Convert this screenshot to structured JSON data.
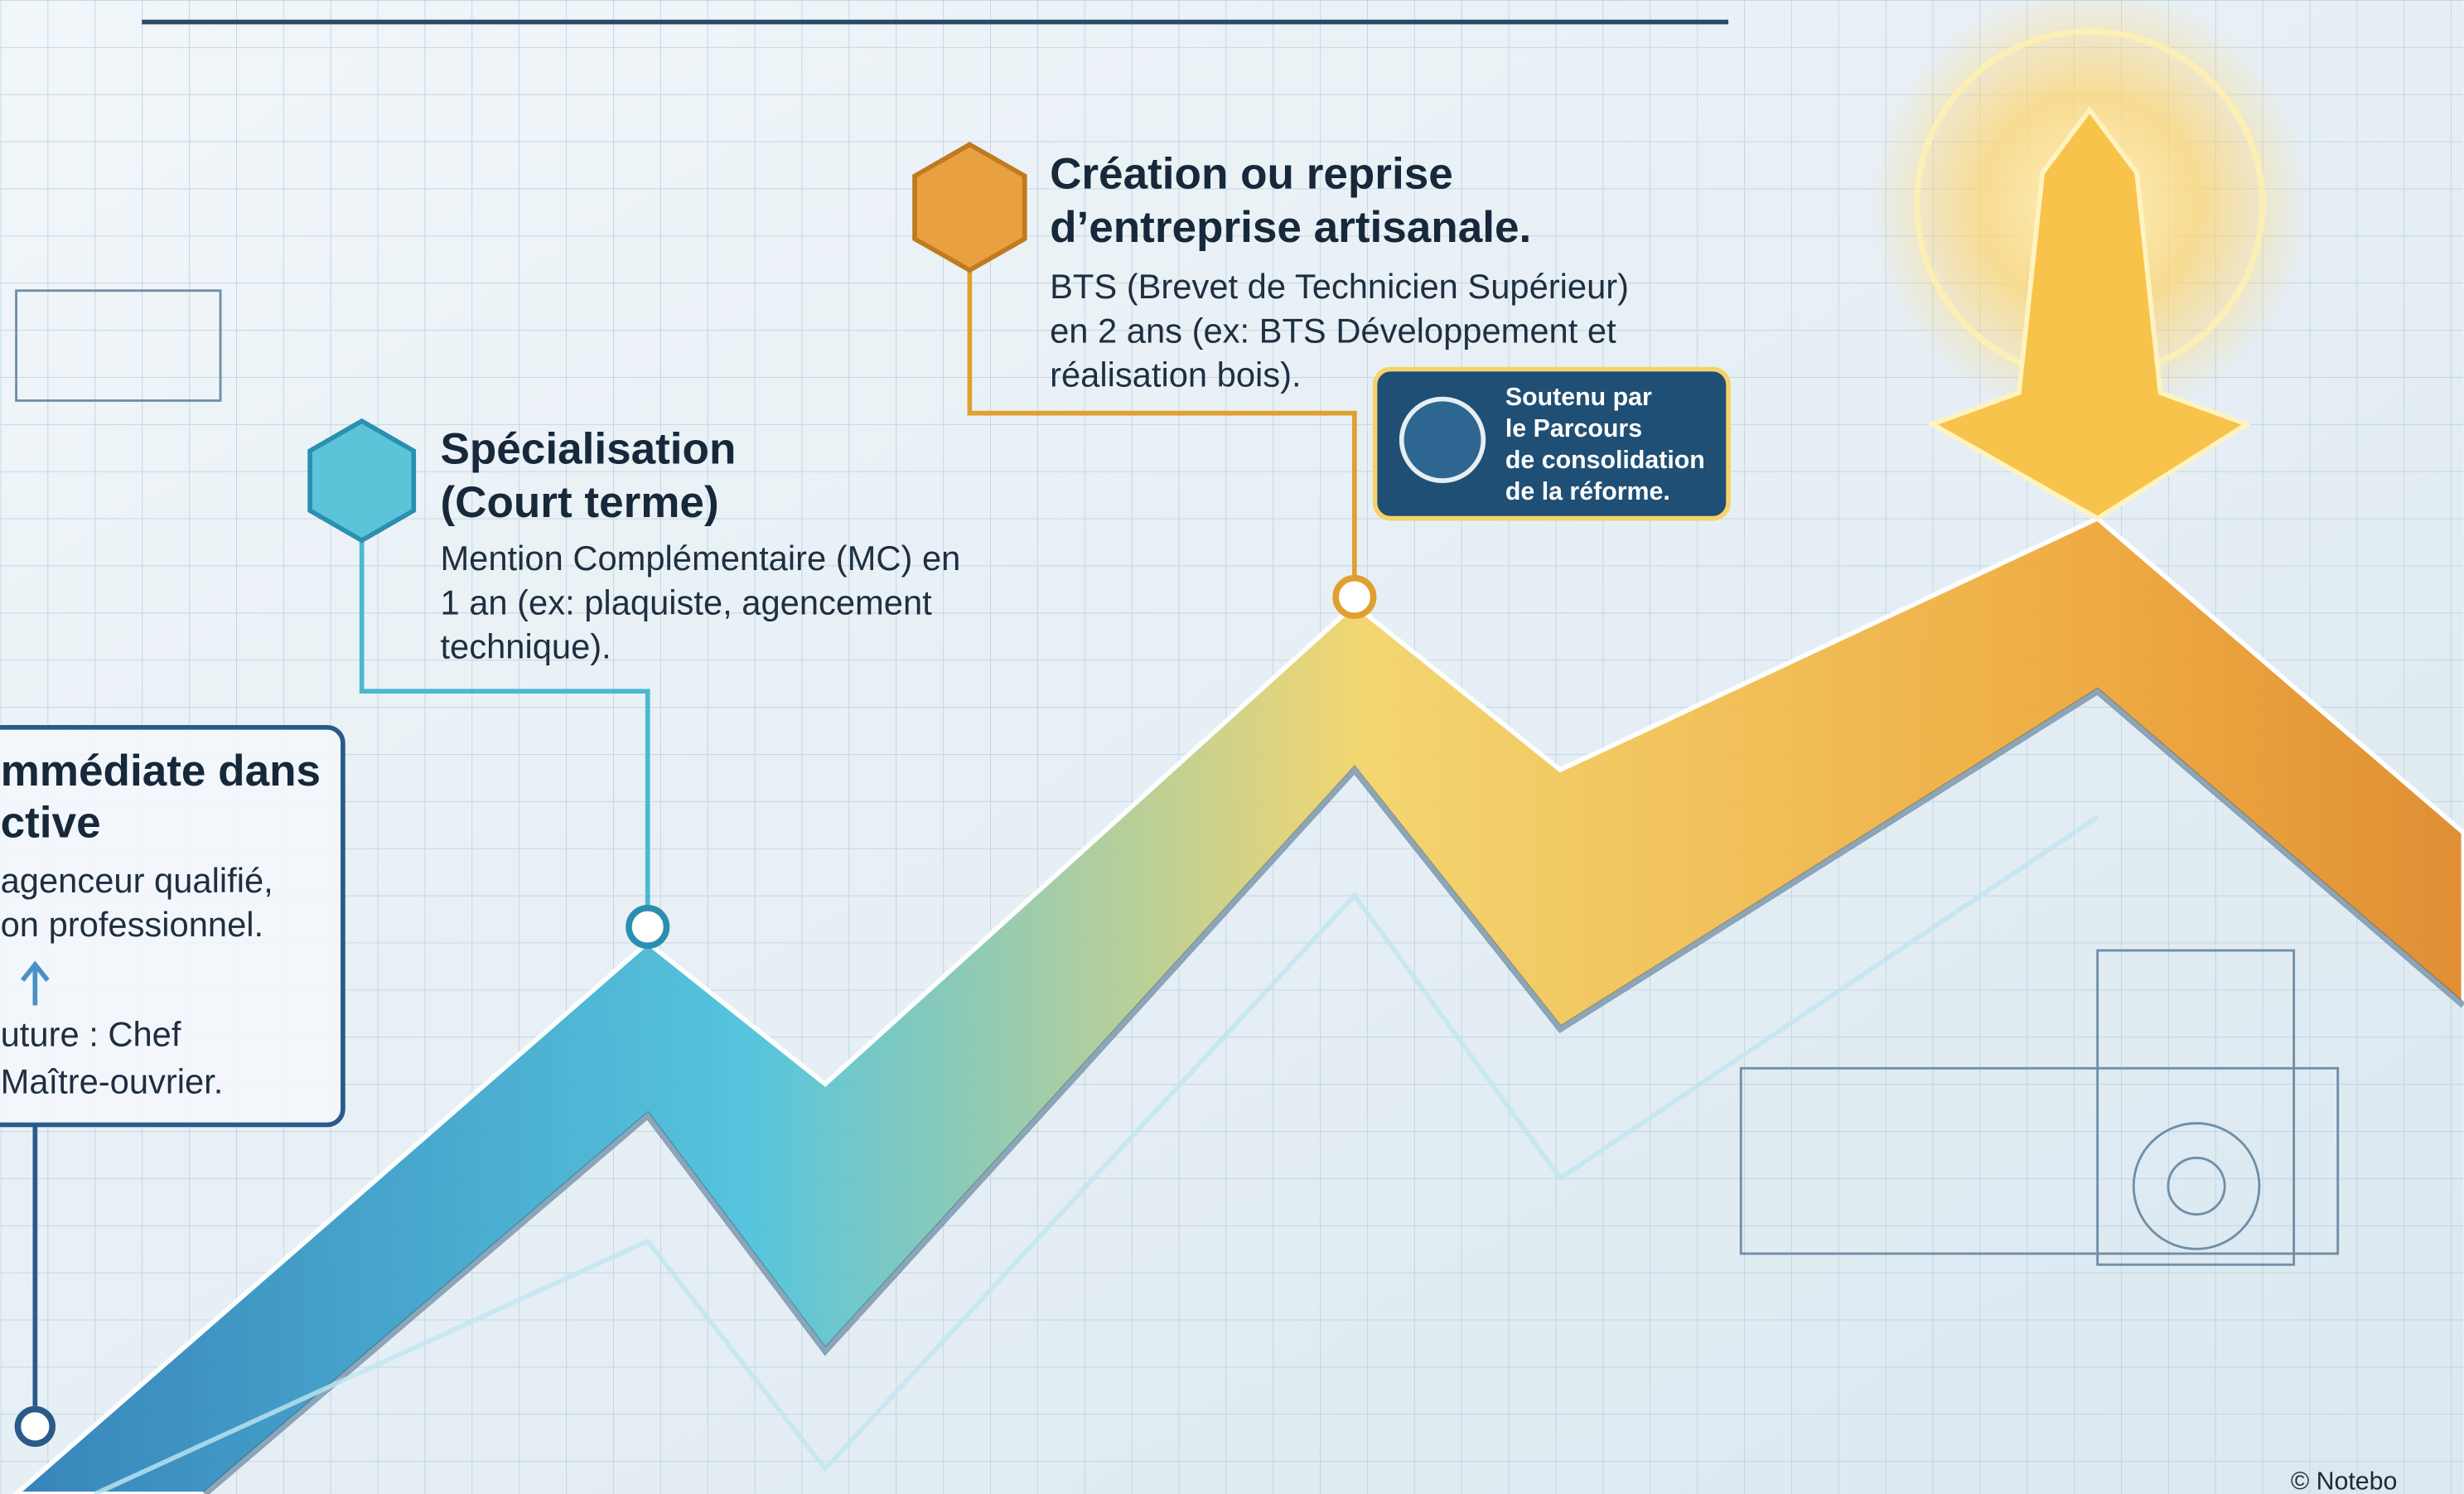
{
  "milestones": [
    {
      "title_lines": [
        "mmédiate dans",
        "ctive"
      ],
      "body_lines": [
        "agenceur qualifié,",
        "on professionnel."
      ],
      "extra_lines": [
        "uture : Chef",
        "Maître-ouvrier."
      ]
    },
    {
      "title_lines": [
        "Spécialisation",
        "(Court terme)"
      ],
      "body_lines": [
        "Mention Complémentaire (MC) en",
        "1 an (ex: plaquiste, agencement",
        "technique)."
      ]
    },
    {
      "title_lines": [
        "Création ou reprise",
        "d’entreprise artisanale."
      ],
      "body_lines": [
        "BTS (Brevet de Technicien Supérieur)",
        "en 2 ans (ex: BTS Développement et",
        "réalisation bois)."
      ]
    }
  ],
  "badge": {
    "lines": [
      "Soutenu par",
      "le Parcours",
      "de consolidation",
      "de la réforme."
    ]
  },
  "footer": "© Notebo"
}
